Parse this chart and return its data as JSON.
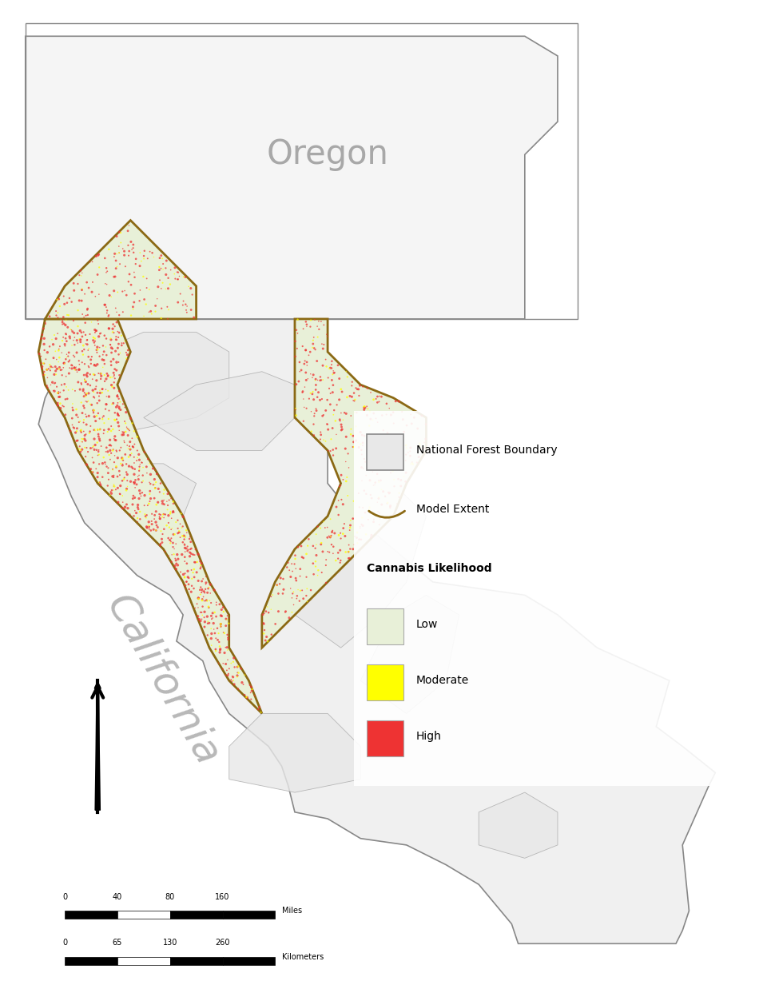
{
  "background_color": "#ffffff",
  "oregon_label": "Oregon",
  "california_label": "California",
  "legend_title_nf": "National Forest Boundary",
  "legend_title_me": "Model Extent",
  "legend_title_cl": "Cannabis Likelihood",
  "legend_low": "Low",
  "legend_moderate": "Moderate",
  "legend_high": "High",
  "color_low": "#e8f0d8",
  "color_moderate": "#ffff00",
  "color_high": "#ee3333",
  "color_model_extent_border": "#8B6914",
  "color_nf_border": "#aaaaaa",
  "color_state_border": "#888888",
  "color_ca_label": "#888888",
  "color_or_label": "#888888",
  "scale_miles_labels": [
    "0",
    "40",
    "80",
    "160",
    "Miles"
  ],
  "scale_km_labels": [
    "0",
    "65",
    "130",
    "260",
    "Kilometers"
  ],
  "title_fontsize": 14,
  "legend_fontsize": 13
}
